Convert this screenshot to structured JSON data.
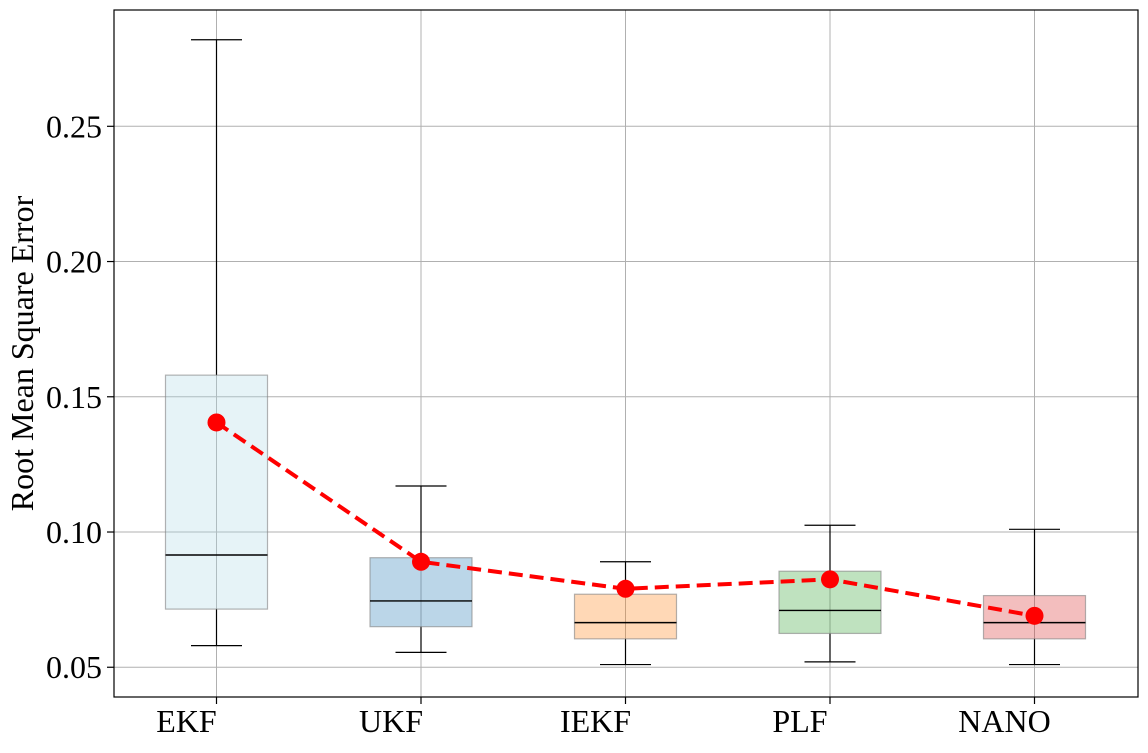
{
  "chart_data": {
    "type": "box",
    "title": "",
    "xlabel": "",
    "ylabel": "Root Mean Square Error",
    "categories": [
      "EKF",
      "UKF",
      "IEKF",
      "PLF",
      "NANO"
    ],
    "ylim": [
      0.039,
      0.293
    ],
    "yticks": [
      0.05,
      0.1,
      0.15,
      0.2,
      0.25
    ],
    "ytick_labels": [
      "0.05",
      "0.10",
      "0.15",
      "0.20",
      "0.25"
    ],
    "grid": true,
    "boxes": [
      {
        "whisker_low": 0.058,
        "q1": 0.0715,
        "median": 0.0915,
        "q3": 0.158,
        "whisker_high": 0.282,
        "color": "#ADD8E6"
      },
      {
        "whisker_low": 0.0555,
        "q1": 0.065,
        "median": 0.0745,
        "q3": 0.0905,
        "whisker_high": 0.117,
        "color": "#1F77B4"
      },
      {
        "whisker_low": 0.051,
        "q1": 0.0605,
        "median": 0.0665,
        "q3": 0.077,
        "whisker_high": 0.089,
        "color": "#FF7F0E"
      },
      {
        "whisker_low": 0.052,
        "q1": 0.0625,
        "median": 0.071,
        "q3": 0.0855,
        "whisker_high": 0.1025,
        "color": "#2CA02C"
      },
      {
        "whisker_low": 0.051,
        "q1": 0.0605,
        "median": 0.0665,
        "q3": 0.0765,
        "whisker_high": 0.101,
        "color": "#D62728"
      }
    ],
    "means": {
      "values": [
        0.1405,
        0.089,
        0.079,
        0.0825,
        0.069
      ],
      "color": "#FF0000",
      "line_style": "dashed",
      "marker": "circle"
    }
  }
}
